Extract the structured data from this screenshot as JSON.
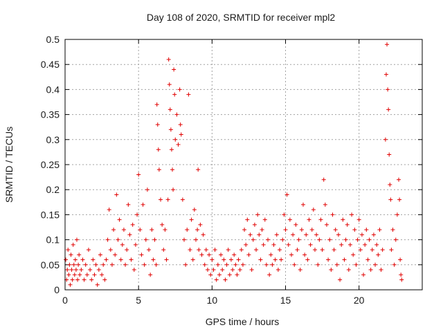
{
  "chart_data": {
    "type": "scatter",
    "title": "Day 108 of 2020, SRMTID for receiver mpl2",
    "xlabel": "GPS time / hours",
    "ylabel": "SRMTID / TECUs",
    "xlim": [
      0,
      24.3
    ],
    "ylim": [
      0,
      0.5
    ],
    "x_ticks": [
      0,
      5,
      10,
      15,
      20
    ],
    "x_tick_labels": [
      "0",
      "5",
      "10",
      "15",
      "20"
    ],
    "y_ticks": [
      0,
      0.05,
      0.1,
      0.15,
      0.2,
      0.25,
      0.3,
      0.35,
      0.4,
      0.45,
      0.5
    ],
    "y_tick_labels": [
      "0",
      "0.05",
      "0.1",
      "0.15",
      "0.2",
      "0.25",
      "0.3",
      "0.35",
      "0.4",
      "0.45",
      "0.5"
    ],
    "grid": true,
    "marker": "+",
    "color": "#e00000",
    "series": [
      {
        "name": "SRMTID",
        "points": [
          [
            0.05,
            0.06
          ],
          [
            0.1,
            0.02
          ],
          [
            0.15,
            0.04
          ],
          [
            0.2,
            0.08
          ],
          [
            0.25,
            0.03
          ],
          [
            0.3,
            0.05
          ],
          [
            0.35,
            0.01
          ],
          [
            0.4,
            0.07
          ],
          [
            0.45,
            0.04
          ],
          [
            0.5,
            0.02
          ],
          [
            0.55,
            0.09
          ],
          [
            0.6,
            0.05
          ],
          [
            0.65,
            0.03
          ],
          [
            0.7,
            0.06
          ],
          [
            0.75,
            0.04
          ],
          [
            0.8,
            0.1
          ],
          [
            0.85,
            0.02
          ],
          [
            0.9,
            0.05
          ],
          [
            0.95,
            0.07
          ],
          [
            1.0,
            0.03
          ],
          [
            1.1,
            0.04
          ],
          [
            1.2,
            0.06
          ],
          [
            1.3,
            0.02
          ],
          [
            1.4,
            0.05
          ],
          [
            1.5,
            0.03
          ],
          [
            1.6,
            0.08
          ],
          [
            1.7,
            0.04
          ],
          [
            1.8,
            0.02
          ],
          [
            1.9,
            0.06
          ],
          [
            2.0,
            0.03
          ],
          [
            2.1,
            0.05
          ],
          [
            2.2,
            0.01
          ],
          [
            2.3,
            0.04
          ],
          [
            2.4,
            0.07
          ],
          [
            2.5,
            0.03
          ],
          [
            2.6,
            0.05
          ],
          [
            2.7,
            0.02
          ],
          [
            2.8,
            0.06
          ],
          [
            2.9,
            0.1
          ],
          [
            3.0,
            0.16
          ],
          [
            3.1,
            0.08
          ],
          [
            3.2,
            0.05
          ],
          [
            3.3,
            0.12
          ],
          [
            3.4,
            0.07
          ],
          [
            3.5,
            0.19
          ],
          [
            3.6,
            0.1
          ],
          [
            3.7,
            0.14
          ],
          [
            3.8,
            0.06
          ],
          [
            3.9,
            0.09
          ],
          [
            4.0,
            0.12
          ],
          [
            4.1,
            0.05
          ],
          [
            4.2,
            0.08
          ],
          [
            4.3,
            0.17
          ],
          [
            4.4,
            0.11
          ],
          [
            4.5,
            0.06
          ],
          [
            4.6,
            0.13
          ],
          [
            4.7,
            0.04
          ],
          [
            4.8,
            0.09
          ],
          [
            4.9,
            0.15
          ],
          [
            5.0,
            0.23
          ],
          [
            5.1,
            0.12
          ],
          [
            5.2,
            0.07
          ],
          [
            5.3,
            0.17
          ],
          [
            5.4,
            0.05
          ],
          [
            5.5,
            0.1
          ],
          [
            5.6,
            0.2
          ],
          [
            5.7,
            0.08
          ],
          [
            5.8,
            0.03
          ],
          [
            5.9,
            0.12
          ],
          [
            6.0,
            0.06
          ],
          [
            6.1,
            0.1
          ],
          [
            6.2,
            0.05
          ],
          [
            6.25,
            0.37
          ],
          [
            6.3,
            0.33
          ],
          [
            6.35,
            0.28
          ],
          [
            6.4,
            0.24
          ],
          [
            6.5,
            0.18
          ],
          [
            6.6,
            0.13
          ],
          [
            6.7,
            0.08
          ],
          [
            6.8,
            0.12
          ],
          [
            6.9,
            0.06
          ],
          [
            7.0,
            0.18
          ],
          [
            7.05,
            0.46
          ],
          [
            7.1,
            0.41
          ],
          [
            7.15,
            0.36
          ],
          [
            7.2,
            0.32
          ],
          [
            7.25,
            0.28
          ],
          [
            7.3,
            0.24
          ],
          [
            7.35,
            0.2
          ],
          [
            7.4,
            0.44
          ],
          [
            7.45,
            0.39
          ],
          [
            7.5,
            0.3
          ],
          [
            7.6,
            0.35
          ],
          [
            7.7,
            0.29
          ],
          [
            7.8,
            0.4
          ],
          [
            7.85,
            0.33
          ],
          [
            7.9,
            0.31
          ],
          [
            8.0,
            0.18
          ],
          [
            8.1,
            0.1
          ],
          [
            8.2,
            0.05
          ],
          [
            8.3,
            0.12
          ],
          [
            8.4,
            0.39
          ],
          [
            8.5,
            0.08
          ],
          [
            8.6,
            0.14
          ],
          [
            8.7,
            0.06
          ],
          [
            8.8,
            0.16
          ],
          [
            8.9,
            0.1
          ],
          [
            9.0,
            0.12
          ],
          [
            9.05,
            0.24
          ],
          [
            9.1,
            0.08
          ],
          [
            9.2,
            0.13
          ],
          [
            9.3,
            0.07
          ],
          [
            9.4,
            0.11
          ],
          [
            9.5,
            0.05
          ],
          [
            9.6,
            0.08
          ],
          [
            9.7,
            0.04
          ],
          [
            9.8,
            0.07
          ],
          [
            9.9,
            0.03
          ],
          [
            10.0,
            0.06
          ],
          [
            10.1,
            0.04
          ],
          [
            10.2,
            0.08
          ],
          [
            10.3,
            0.02
          ],
          [
            10.4,
            0.05
          ],
          [
            10.5,
            0.03
          ],
          [
            10.6,
            0.07
          ],
          [
            10.7,
            0.04
          ],
          [
            10.8,
            0.06
          ],
          [
            10.9,
            0.02
          ],
          [
            11.0,
            0.05
          ],
          [
            11.1,
            0.08
          ],
          [
            11.2,
            0.03
          ],
          [
            11.3,
            0.06
          ],
          [
            11.4,
            0.04
          ],
          [
            11.5,
            0.07
          ],
          [
            11.6,
            0.05
          ],
          [
            11.7,
            0.03
          ],
          [
            11.8,
            0.06
          ],
          [
            11.9,
            0.04
          ],
          [
            12.0,
            0.08
          ],
          [
            12.1,
            0.05
          ],
          [
            12.2,
            0.12
          ],
          [
            12.3,
            0.09
          ],
          [
            12.4,
            0.14
          ],
          [
            12.5,
            0.07
          ],
          [
            12.6,
            0.11
          ],
          [
            12.7,
            0.04
          ],
          [
            12.8,
            0.1
          ],
          [
            12.9,
            0.13
          ],
          [
            13.0,
            0.08
          ],
          [
            13.1,
            0.15
          ],
          [
            13.2,
            0.11
          ],
          [
            13.3,
            0.06
          ],
          [
            13.4,
            0.12
          ],
          [
            13.5,
            0.09
          ],
          [
            13.6,
            0.14
          ],
          [
            13.7,
            0.05
          ],
          [
            13.8,
            0.1
          ],
          [
            13.9,
            0.03
          ],
          [
            14.0,
            0.07
          ],
          [
            14.1,
            0.05
          ],
          [
            14.2,
            0.09
          ],
          [
            14.3,
            0.06
          ],
          [
            14.4,
            0.11
          ],
          [
            14.5,
            0.04
          ],
          [
            14.6,
            0.08
          ],
          [
            14.7,
            0.06
          ],
          [
            14.8,
            0.1
          ],
          [
            14.9,
            0.15
          ],
          [
            15.0,
            0.12
          ],
          [
            15.1,
            0.19
          ],
          [
            15.2,
            0.09
          ],
          [
            15.3,
            0.14
          ],
          [
            15.4,
            0.07
          ],
          [
            15.5,
            0.11
          ],
          [
            15.6,
            0.05
          ],
          [
            15.7,
            0.13
          ],
          [
            15.8,
            0.08
          ],
          [
            15.9,
            0.1
          ],
          [
            16.0,
            0.04
          ],
          [
            16.1,
            0.12
          ],
          [
            16.2,
            0.17
          ],
          [
            16.3,
            0.07
          ],
          [
            16.4,
            0.11
          ],
          [
            16.5,
            0.06
          ],
          [
            16.6,
            0.14
          ],
          [
            16.7,
            0.09
          ],
          [
            16.8,
            0.12
          ],
          [
            16.9,
            0.16
          ],
          [
            17.0,
            0.08
          ],
          [
            17.1,
            0.11
          ],
          [
            17.2,
            0.05
          ],
          [
            17.3,
            0.1
          ],
          [
            17.4,
            0.14
          ],
          [
            17.5,
            0.08
          ],
          [
            17.6,
            0.22
          ],
          [
            17.7,
            0.17
          ],
          [
            17.8,
            0.13
          ],
          [
            17.9,
            0.06
          ],
          [
            18.0,
            0.1
          ],
          [
            18.1,
            0.04
          ],
          [
            18.2,
            0.15
          ],
          [
            18.3,
            0.08
          ],
          [
            18.4,
            0.12
          ],
          [
            18.5,
            0.05
          ],
          [
            18.6,
            0.11
          ],
          [
            18.7,
            0.02
          ],
          [
            18.8,
            0.09
          ],
          [
            18.9,
            0.14
          ],
          [
            19.0,
            0.06
          ],
          [
            19.1,
            0.1
          ],
          [
            19.2,
            0.13
          ],
          [
            19.3,
            0.04
          ],
          [
            19.4,
            0.09
          ],
          [
            19.5,
            0.15
          ],
          [
            19.6,
            0.07
          ],
          [
            19.7,
            0.12
          ],
          [
            19.8,
            0.05
          ],
          [
            19.9,
            0.1
          ],
          [
            20.0,
            0.14
          ],
          [
            20.1,
            0.08
          ],
          [
            20.2,
            0.11
          ],
          [
            20.3,
            0.03
          ],
          [
            20.4,
            0.09
          ],
          [
            20.5,
            0.12
          ],
          [
            20.6,
            0.06
          ],
          [
            20.7,
            0.1
          ],
          [
            20.8,
            0.04
          ],
          [
            20.9,
            0.08
          ],
          [
            21.0,
            0.11
          ],
          [
            21.1,
            0.05
          ],
          [
            21.2,
            0.09
          ],
          [
            21.3,
            0.07
          ],
          [
            21.4,
            0.12
          ],
          [
            21.5,
            0.04
          ],
          [
            21.6,
            0.08
          ],
          [
            21.8,
            0.3
          ],
          [
            21.85,
            0.43
          ],
          [
            21.9,
            0.49
          ],
          [
            21.95,
            0.4
          ],
          [
            22.0,
            0.36
          ],
          [
            22.05,
            0.27
          ],
          [
            22.1,
            0.21
          ],
          [
            22.15,
            0.18
          ],
          [
            22.2,
            0.08
          ],
          [
            22.3,
            0.12
          ],
          [
            22.4,
            0.05
          ],
          [
            22.5,
            0.1
          ],
          [
            22.6,
            0.15
          ],
          [
            22.7,
            0.22
          ],
          [
            22.75,
            0.18
          ],
          [
            22.8,
            0.06
          ],
          [
            22.85,
            0.03
          ],
          [
            22.9,
            0.02
          ]
        ]
      }
    ]
  }
}
